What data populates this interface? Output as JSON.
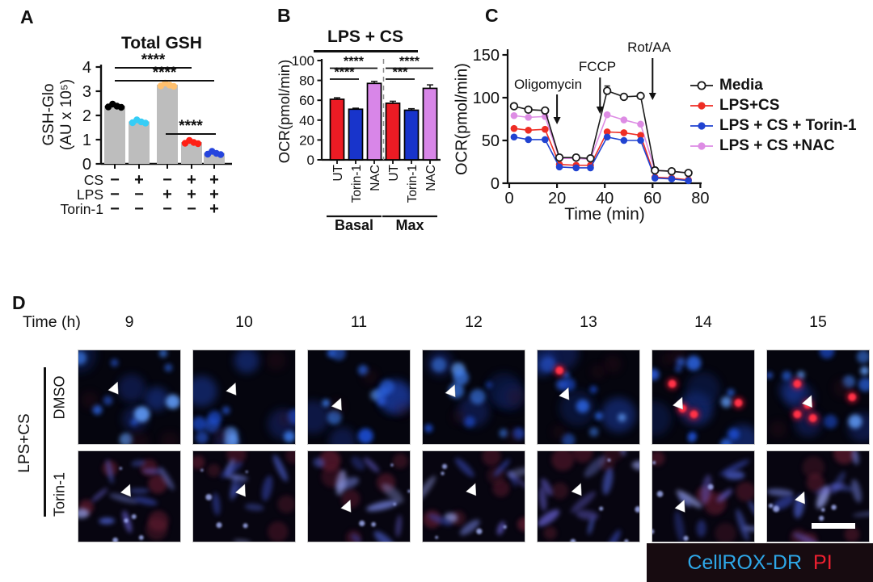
{
  "panels": {
    "a": {
      "label": "A"
    },
    "b": {
      "label": "B"
    },
    "c": {
      "label": "C"
    },
    "d": {
      "label": "D",
      "time_label": "Time (h)",
      "columns": [
        "9",
        "10",
        "11",
        "12",
        "13",
        "14",
        "15"
      ],
      "group_label": "LPS+CS",
      "rows": [
        {
          "label": "DMSO"
        },
        {
          "label": "Torin-1"
        }
      ],
      "dmso_tiles": [
        {
          "time": "9",
          "arrow": [
            36,
            40
          ],
          "pi_cells": []
        },
        {
          "time": "10",
          "arrow": [
            39,
            41
          ],
          "pi_cells": []
        },
        {
          "time": "11",
          "arrow": [
            30,
            57
          ],
          "pi_cells": []
        },
        {
          "time": "12",
          "arrow": [
            29,
            43
          ],
          "pi_cells": []
        },
        {
          "time": "13",
          "arrow": [
            28,
            46
          ],
          "pi_cells": [
            [
              22,
              22
            ]
          ]
        },
        {
          "time": "14",
          "arrow": [
            27,
            56
          ],
          "pi_cells": [
            [
              20,
              36
            ],
            [
              30,
              62
            ],
            [
              41,
              68
            ],
            [
              84,
              56
            ]
          ]
        },
        {
          "time": "15",
          "arrow": [
            41,
            54
          ],
          "pi_cells": [
            [
              30,
              36
            ],
            [
              40,
              58
            ],
            [
              30,
              68
            ],
            [
              45,
              72
            ],
            [
              83,
              50
            ]
          ]
        }
      ],
      "torin_tiles": [
        {
          "time": "9",
          "arrow": [
            48,
            43
          ]
        },
        {
          "time": "10",
          "arrow": [
            48,
            43
          ]
        },
        {
          "time": "11",
          "arrow": [
            39,
            60
          ]
        },
        {
          "time": "12",
          "arrow": [
            49,
            42
          ]
        },
        {
          "time": "13",
          "arrow": [
            40,
            42
          ]
        },
        {
          "time": "14",
          "arrow": [
            29,
            60
          ]
        },
        {
          "time": "15",
          "arrow": [
            34,
            51
          ]
        }
      ],
      "scale_bar": true,
      "stain_labels": {
        "cellrox": "CellROX-DR",
        "pi": "PI"
      },
      "stain_colors": {
        "cellrox": "#2ea7e8",
        "pi": "#ee2030"
      }
    }
  },
  "chart_data": [
    {
      "type": "bar",
      "title": "Total GSH",
      "ylabel": "GSH-Glo",
      "ylabel2": "(AU x 10⁵)",
      "ylim": [
        0,
        4
      ],
      "yticks": [
        0,
        1,
        2,
        3,
        4
      ],
      "values": [
        2.4,
        1.75,
        3.27,
        0.9,
        0.45
      ],
      "bar_color": "#bdbdbd",
      "dot_colors": [
        "#000000",
        "#36cdf6",
        "#ffc06e",
        "#ff2015",
        "#2544dd"
      ],
      "condition_rows": [
        {
          "label": "CS",
          "signs": [
            "−",
            "+",
            "−",
            "+",
            "+"
          ]
        },
        {
          "label": "LPS",
          "signs": [
            "−",
            "−",
            "+",
            "+",
            "+"
          ]
        },
        {
          "label": "Torin-1",
          "signs": [
            "−",
            "−",
            "−",
            "−",
            "+"
          ]
        }
      ],
      "significance": [
        {
          "stars": "****",
          "from": 0,
          "to": 3
        },
        {
          "stars": "****",
          "from": 0,
          "to": 4
        },
        {
          "stars": "****",
          "from": 3,
          "to": 4
        }
      ]
    },
    {
      "type": "bar",
      "title": "LPS + CS",
      "ylabel": "OCR(pmol/min)",
      "ylim": [
        0,
        100
      ],
      "yticks": [
        0,
        20,
        40,
        60,
        80,
        100
      ],
      "groups": [
        {
          "label": "Basal",
          "categories": [
            "UT",
            "Torin-1",
            "NAC"
          ],
          "values": [
            61,
            51,
            77
          ],
          "errors": [
            1.5,
            1,
            2
          ]
        },
        {
          "label": "Max",
          "categories": [
            "UT",
            "Torin-1",
            "NAC"
          ],
          "values": [
            57,
            50,
            72
          ],
          "errors": [
            2,
            1.5,
            3.5
          ]
        }
      ],
      "bar_colors": [
        "#ec1b24",
        "#1834cb",
        "#d886e8"
      ],
      "significance": [
        {
          "stars": "****",
          "group": 0,
          "from": 0,
          "to": 1,
          "tier": "low"
        },
        {
          "stars": "****",
          "group": 0,
          "from": 0,
          "to": 2,
          "tier": "high"
        },
        {
          "stars": "***",
          "group": 1,
          "from": 0,
          "to": 1,
          "tier": "low"
        },
        {
          "stars": "****",
          "group": 1,
          "from": 0,
          "to": 2,
          "tier": "high"
        }
      ]
    },
    {
      "type": "line",
      "ylabel": "OCR(pmol/min)",
      "xlabel": "Time (min)",
      "xlim": [
        0,
        80
      ],
      "ylim": [
        0,
        150
      ],
      "xticks": [
        0,
        20,
        40,
        60,
        80
      ],
      "yticks": [
        0,
        50,
        100,
        150
      ],
      "x": [
        2,
        8,
        15,
        21,
        28,
        34,
        41,
        48,
        55,
        61,
        68,
        75
      ],
      "series": [
        {
          "name": "Media",
          "color": "#1a1a1a",
          "marker": "open",
          "values": [
            90,
            86,
            85,
            30,
            30,
            29,
            108,
            101,
            102,
            15,
            14,
            12
          ]
        },
        {
          "name": "LPS+CS",
          "color": "#ee2d24",
          "marker": "filled",
          "values": [
            64,
            62,
            63,
            22,
            21,
            21,
            60,
            59,
            56,
            7,
            6,
            4
          ]
        },
        {
          "name": "LPS + CS + Torin-1",
          "color": "#2143d1",
          "marker": "filled",
          "values": [
            54,
            51,
            51,
            19,
            18,
            18,
            54,
            50,
            50,
            6,
            5,
            3
          ]
        },
        {
          "name": "LPS + CS +NAC",
          "color": "#dd8ce4",
          "marker": "filled",
          "values": [
            79,
            77,
            78,
            29,
            29,
            28,
            80,
            74,
            69,
            15,
            14,
            12
          ]
        }
      ],
      "annotations": [
        {
          "text": "Oligomycin",
          "x_min": 20
        },
        {
          "text": "FCCP",
          "x_min": 38
        },
        {
          "text": "Rot/AA",
          "x_min": 60
        }
      ],
      "legend_position": "right",
      "grid": false
    }
  ]
}
